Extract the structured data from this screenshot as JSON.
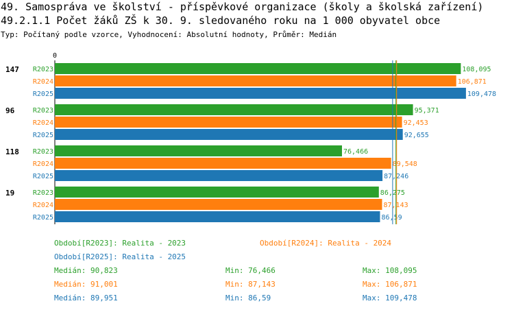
{
  "header": {
    "title_line1": "49. Samospráva ve školství - příspěvkové organizace (školy a školská zařízení)",
    "title_line2": "49.2.1.1 Počet žáků ZŠ k 30. 9. sledovaného roku  na 1 000 obyvatel obce",
    "subtitle": "Typ: Počítaný podle vzorce, Vyhodnocení: Absolutní hodnoty, Průměr: Medián"
  },
  "colors": {
    "R2023": "#2ca02c",
    "R2024": "#ff7f0e",
    "R2025": "#1f77b4"
  },
  "chart_data": {
    "type": "bar",
    "orientation": "horizontal",
    "title": "49.2.1.1 Počet žáků ZŠ k 30. 9. sledovaného roku  na 1 000 obyvatel obce",
    "axis_zero_label": "0",
    "xlim": [
      0,
      116
    ],
    "categories": [
      "147",
      "96",
      "118",
      "19"
    ],
    "series": [
      {
        "name": "R2023",
        "values": [
          108.095,
          95.371,
          76.466,
          86.275
        ],
        "labels": [
          "108,095",
          "95,371",
          "76,466",
          "86,275"
        ]
      },
      {
        "name": "R2024",
        "values": [
          106.871,
          92.453,
          89.548,
          87.143
        ],
        "labels": [
          "106,871",
          "92,453",
          "89,548",
          "87,143"
        ]
      },
      {
        "name": "R2025",
        "values": [
          109.478,
          92.655,
          87.246,
          86.59
        ],
        "labels": [
          "109,478",
          "92,655",
          "87,246",
          "86,59"
        ]
      }
    ],
    "median_lines": [
      {
        "series": "R2023",
        "value": 90.823
      },
      {
        "series": "R2024",
        "value": 91.001
      },
      {
        "series": "R2025",
        "value": 89.951
      }
    ]
  },
  "legend": {
    "r2023": "Období[R2023]: Realita - 2023",
    "r2024": "Období[R2024]: Realita - 2024",
    "r2025": "Období[R2025]: Realita - 2025"
  },
  "stats": [
    {
      "series": "R2023",
      "median": "Medián: 90,823",
      "min": "Min: 76,466",
      "max": "Max: 108,095"
    },
    {
      "series": "R2024",
      "median": "Medián: 91,001",
      "min": "Min: 87,143",
      "max": "Max: 106,871"
    },
    {
      "series": "R2025",
      "median": "Medián: 89,951",
      "min": "Min: 86,59",
      "max": "Max: 109,478"
    }
  ]
}
